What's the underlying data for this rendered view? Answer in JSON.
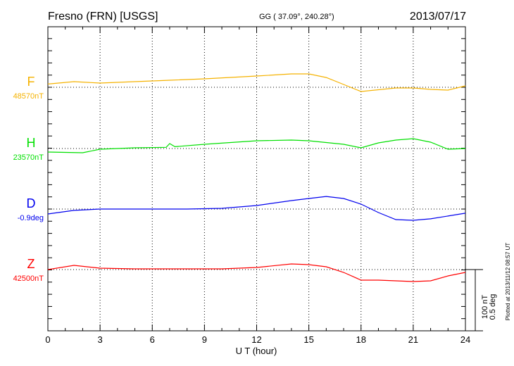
{
  "chart_data": {
    "type": "line",
    "title": "Fresno (FRN)  [USGS]",
    "coords": "GG ( 37.09°, 240.28°)",
    "date": "2013/07/17",
    "xlabel": "U T (hour)",
    "xlim": [
      0,
      24
    ],
    "xticks": [
      "0",
      "3",
      "6",
      "9",
      "12",
      "15",
      "18",
      "21",
      "24"
    ],
    "grid": true,
    "scale_bar": {
      "label1": "100 nT",
      "label2": "0.5 deg",
      "nT": 100,
      "deg": 0.5
    },
    "plotted_note": "Plotted at 2013/11/12 08:57 UT",
    "series": [
      {
        "name": "F",
        "baseline_label": "48570nT",
        "unit": "nT",
        "color": "#f5b200",
        "x": [
          0,
          1.5,
          3,
          5,
          7,
          9,
          12,
          14,
          15,
          16,
          17,
          18,
          20,
          21,
          22,
          23,
          24
        ],
        "y": [
          5.3,
          9.2,
          6.9,
          9.2,
          11.5,
          13.8,
          18.4,
          21.8,
          21.8,
          16,
          4.6,
          -6.9,
          -1.1,
          -1.1,
          -3.4,
          -4.6,
          2.3
        ]
      },
      {
        "name": "H",
        "baseline_label": "23570nT",
        "unit": "nT",
        "color": "#00e000",
        "x": [
          0,
          2,
          3,
          5,
          6.8,
          7,
          7.3,
          9,
          12,
          14,
          15,
          17,
          18,
          19,
          20,
          21,
          22,
          23,
          24
        ],
        "y": [
          -5.7,
          -6.9,
          -1.1,
          1.1,
          2,
          8,
          3,
          6.9,
          12.6,
          13.8,
          12.6,
          6.9,
          1.1,
          9.2,
          13.8,
          16.1,
          10.3,
          -1.1,
          0
        ]
      },
      {
        "name": "D",
        "baseline_label": "-0.9deg",
        "unit": "deg",
        "color": "#0000ee",
        "x": [
          0,
          1.5,
          3,
          8,
          10,
          12,
          14,
          15,
          16,
          17,
          18,
          19,
          20,
          21,
          22,
          23,
          24
        ],
        "y": [
          -0.04,
          -0.011,
          0,
          0,
          0.006,
          0.029,
          0.069,
          0.086,
          0.103,
          0.086,
          0.04,
          -0.029,
          -0.086,
          -0.092,
          -0.08,
          -0.057,
          -0.034
        ]
      },
      {
        "name": "Z",
        "baseline_label": "42500nT",
        "unit": "nT",
        "color": "#ff0000",
        "x": [
          0,
          1.5,
          3,
          5,
          10,
          12,
          14,
          15,
          16,
          17,
          18,
          19,
          20,
          21,
          22,
          23,
          24
        ],
        "y": [
          0,
          6.9,
          2.3,
          1.1,
          1.1,
          3.4,
          9.2,
          8,
          4.6,
          -4.6,
          -17.2,
          -17.2,
          -18.4,
          -19.5,
          -18.4,
          -10.3,
          -4.6
        ]
      }
    ]
  }
}
